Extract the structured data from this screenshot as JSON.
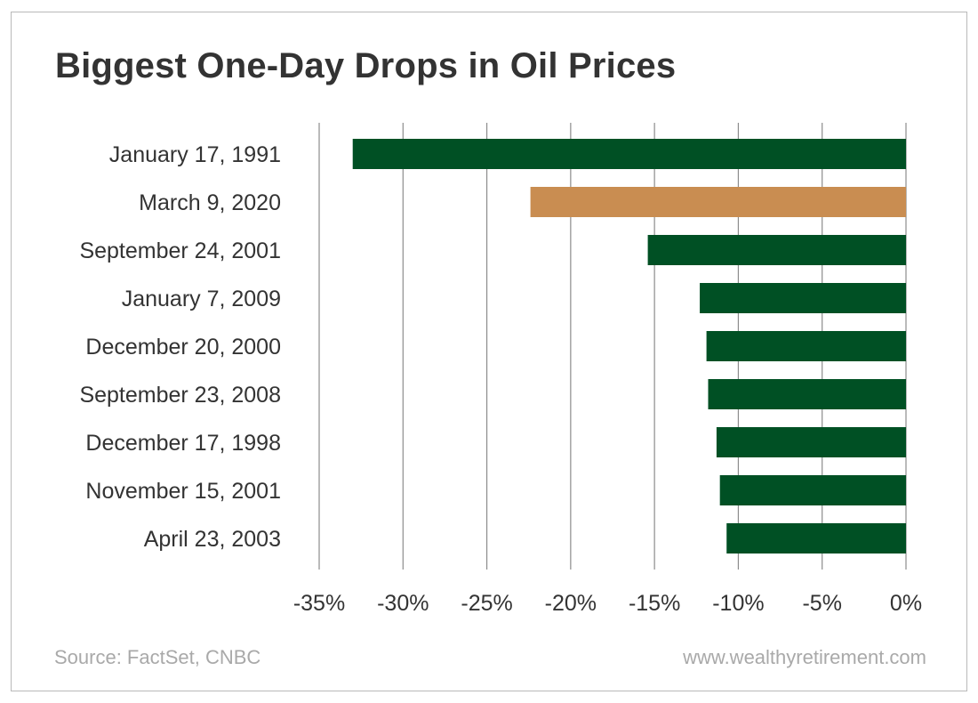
{
  "title": "Biggest One-Day Drops in Oil Prices",
  "footer": {
    "source": "Source: FactSet, CNBC",
    "website": "www.wealthyretirement.com"
  },
  "colors": {
    "default_bar": "#005024",
    "highlight_bar": "#c98d51",
    "gridline": "#8c8c8c",
    "label_text": "#333333",
    "footer_text": "#a9a9a9"
  },
  "chart_data": {
    "type": "bar",
    "orientation": "horizontal",
    "title": "Biggest One-Day Drops in Oil Prices",
    "xlabel": "",
    "ylabel": "",
    "categories": [
      "January 17, 1991",
      "March 9, 2020",
      "September 24, 2001",
      "January 7, 2009",
      "December 20, 2000",
      "September 23, 2008",
      "December 17, 1998",
      "November 15, 2001",
      "April 23, 2003"
    ],
    "values": [
      -33.0,
      -22.4,
      -15.4,
      -12.3,
      -11.9,
      -11.8,
      -11.3,
      -11.1,
      -10.7
    ],
    "highlight_index": 1,
    "xlim": [
      -35,
      0
    ],
    "xticks": [
      -35,
      -30,
      -25,
      -20,
      -15,
      -10,
      -5,
      0
    ],
    "xtick_labels": [
      "-35%",
      "-30%",
      "-25%",
      "-20%",
      "-15%",
      "-10%",
      "-5%",
      "0%"
    ],
    "grid": true,
    "legend": "none"
  }
}
